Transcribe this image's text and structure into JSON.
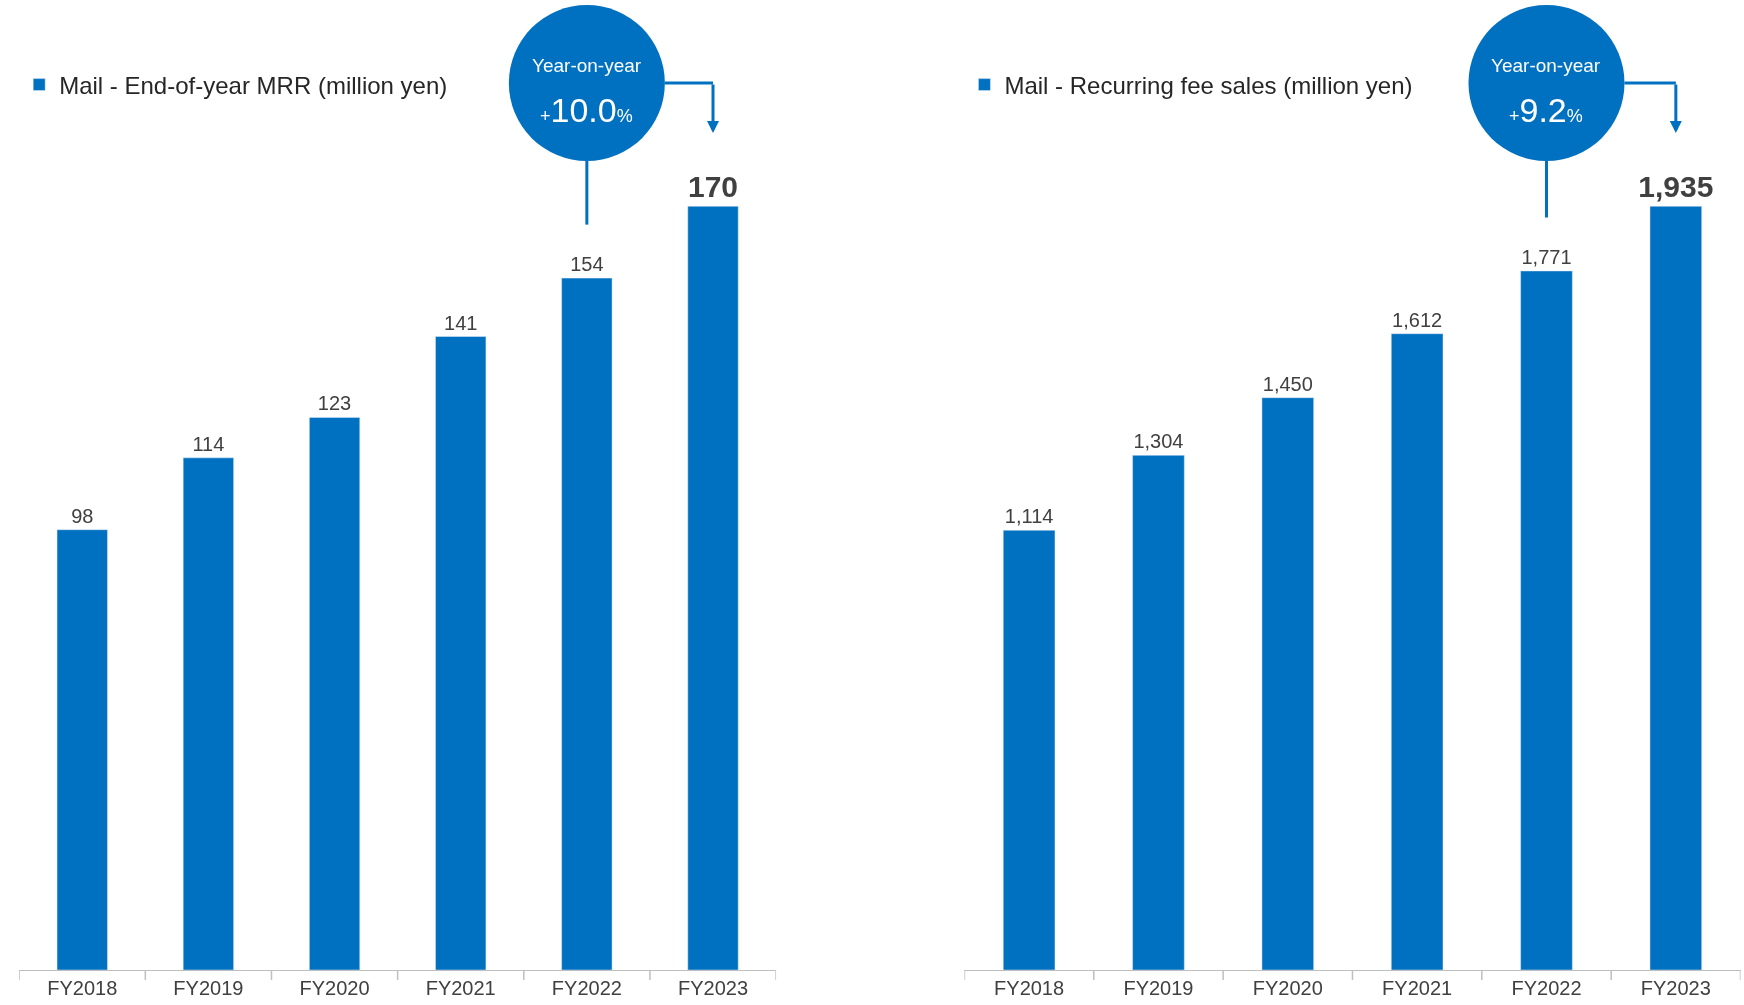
{
  "chart_data": [
    {
      "type": "bar",
      "categories": [
        "FY2018",
        "FY2019",
        "FY2020",
        "FY2021",
        "FY2022",
        "FY2023"
      ],
      "series": [
        {
          "name": "Mail - End-of-year MRR (million yen)",
          "color": "#0070c0",
          "values": [
            98,
            114,
            123,
            141,
            154,
            170
          ]
        }
      ],
      "data_labels": true,
      "legend": "top left",
      "annotations": [
        "Year-on-year",
        "+10.0%"
      ]
    },
    {
      "type": "bar",
      "categories": [
        "FY2018",
        "FY2019",
        "FY2020",
        "FY2021",
        "FY2022",
        "FY2023"
      ],
      "series": [
        {
          "name": "Mail - Recurring fee sales (million yen)",
          "color": "#0070c0",
          "values": [
            1114,
            1304,
            1450,
            1612,
            1771,
            1935
          ],
          "value_labels": [
            "1,114",
            "1,304",
            "1,450",
            "1,612",
            "1,771",
            "1,935"
          ]
        }
      ],
      "legend": "top left",
      "annotations": [
        "Year-on-year",
        "+9.2%"
      ]
    }
  ]
}
